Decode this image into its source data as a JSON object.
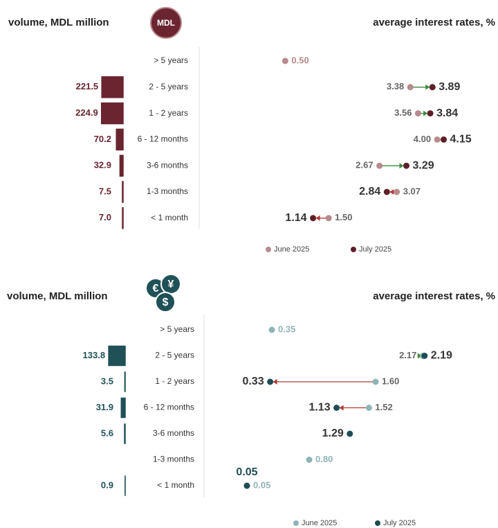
{
  "chart_data": [
    {
      "type": "dumbbell",
      "volume_title": "volume, MDL million",
      "rates_title": "average interest rates, %",
      "badge": "MDL",
      "categories": [
        "> 5 years",
        "2 - 5 years",
        "1 - 2 years",
        "6 - 12 months",
        "3-6 months",
        "1-3 months",
        "< 1 month"
      ],
      "volumes": [
        null,
        221.5,
        224.9,
        70.2,
        32.9,
        7.5,
        7.0
      ],
      "volume_labels": [
        null,
        "221.5",
        "224.9",
        "70.2",
        "32.9",
        "7.5",
        "7.0"
      ],
      "volume_color": "#6b2530",
      "volume_lim": [
        0,
        230
      ],
      "xlim": [
        0,
        5.4
      ],
      "up_color": "#3c8a3c",
      "down_color": "#b03a34",
      "series": [
        {
          "name": "June 2025",
          "color": "#b78a8d",
          "values": [
            0.5,
            3.38,
            3.56,
            4.0,
            2.67,
            3.07,
            1.5
          ],
          "value_labels": [
            "0.50",
            "3.38",
            "3.56",
            "4.00",
            "2.67",
            "3.07",
            "1.50"
          ]
        },
        {
          "name": "July 2025",
          "color": "#5e1f28",
          "values": [
            null,
            3.89,
            3.84,
            4.15,
            3.29,
            2.84,
            1.14
          ],
          "value_labels": [
            null,
            "3.89",
            "3.84",
            "4.15",
            "3.29",
            "2.84",
            "1.14"
          ]
        }
      ]
    },
    {
      "type": "dumbbell",
      "volume_title": "volume, MDL million",
      "rates_title": "average interest rates, %",
      "icon_symbols": [
        "€",
        "¥",
        "$"
      ],
      "categories": [
        "> 5 years",
        "2 - 5 years",
        "1 - 2 years",
        "6 - 12 months",
        "3-6 months",
        "1-3 months",
        "< 1 month"
      ],
      "volumes": [
        null,
        133.8,
        3.5,
        31.9,
        5.6,
        null,
        0.9
      ],
      "volume_labels": [
        null,
        "133.8",
        "3.5",
        "31.9",
        "5.6",
        null,
        "0.9"
      ],
      "volume_color": "#1f5157",
      "volume_lim": [
        0,
        140
      ],
      "xlim": [
        0,
        3
      ],
      "up_color": "#3c8a3c",
      "down_color": "#b03a34",
      "series": [
        {
          "name": "June 2025",
          "color": "#8fb4b6",
          "values": [
            0.35,
            2.17,
            1.6,
            1.52,
            null,
            0.8,
            0.05
          ],
          "value_labels": [
            "0.35",
            "2.17",
            "1.60",
            "1.52",
            null,
            "0.80",
            "0.05"
          ]
        },
        {
          "name": "July 2025",
          "color": "#1f4d54",
          "values": [
            null,
            2.19,
            0.33,
            1.13,
            1.29,
            null,
            0.05
          ],
          "value_labels": [
            null,
            "2.19",
            "0.33",
            "1.13",
            "1.29",
            null,
            "0.05"
          ]
        }
      ]
    }
  ]
}
